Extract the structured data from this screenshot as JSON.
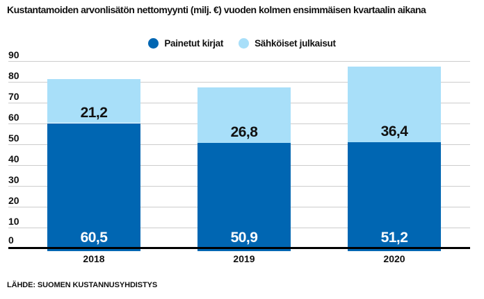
{
  "chart_data": {
    "type": "bar",
    "stacked": true,
    "title": "Kustantamoiden arvonlisätön nettomyynti (milj. €) vuoden kolmen ensimmäisen kvartaalin aikana",
    "categories": [
      "2018",
      "2019",
      "2020"
    ],
    "series": [
      {
        "name": "Painetut kirjat",
        "color": "#0066B2",
        "label_color": "#FFFFFF",
        "values": [
          60.5,
          50.9,
          51.2
        ],
        "value_labels": [
          "60,5",
          "50,9",
          "51,2"
        ]
      },
      {
        "name": "Sähköiset julkaisut",
        "color": "#A8DFF9",
        "label_color": "#111111",
        "values": [
          21.2,
          26.8,
          36.4
        ],
        "value_labels": [
          "21,2",
          "26,8",
          "36,4"
        ]
      }
    ],
    "ylim": [
      0,
      90
    ],
    "yticks": [
      0,
      10,
      20,
      30,
      40,
      50,
      60,
      70,
      80,
      90
    ],
    "grid": true,
    "gridline_color": "#CCCCCC",
    "axis_line_color": "#000000",
    "text_color": "#111111",
    "legend_position": "top",
    "xlabel": "",
    "ylabel": ""
  },
  "source": "LÄHDE: SUOMEN KUSTANNUSYHDISTYS"
}
